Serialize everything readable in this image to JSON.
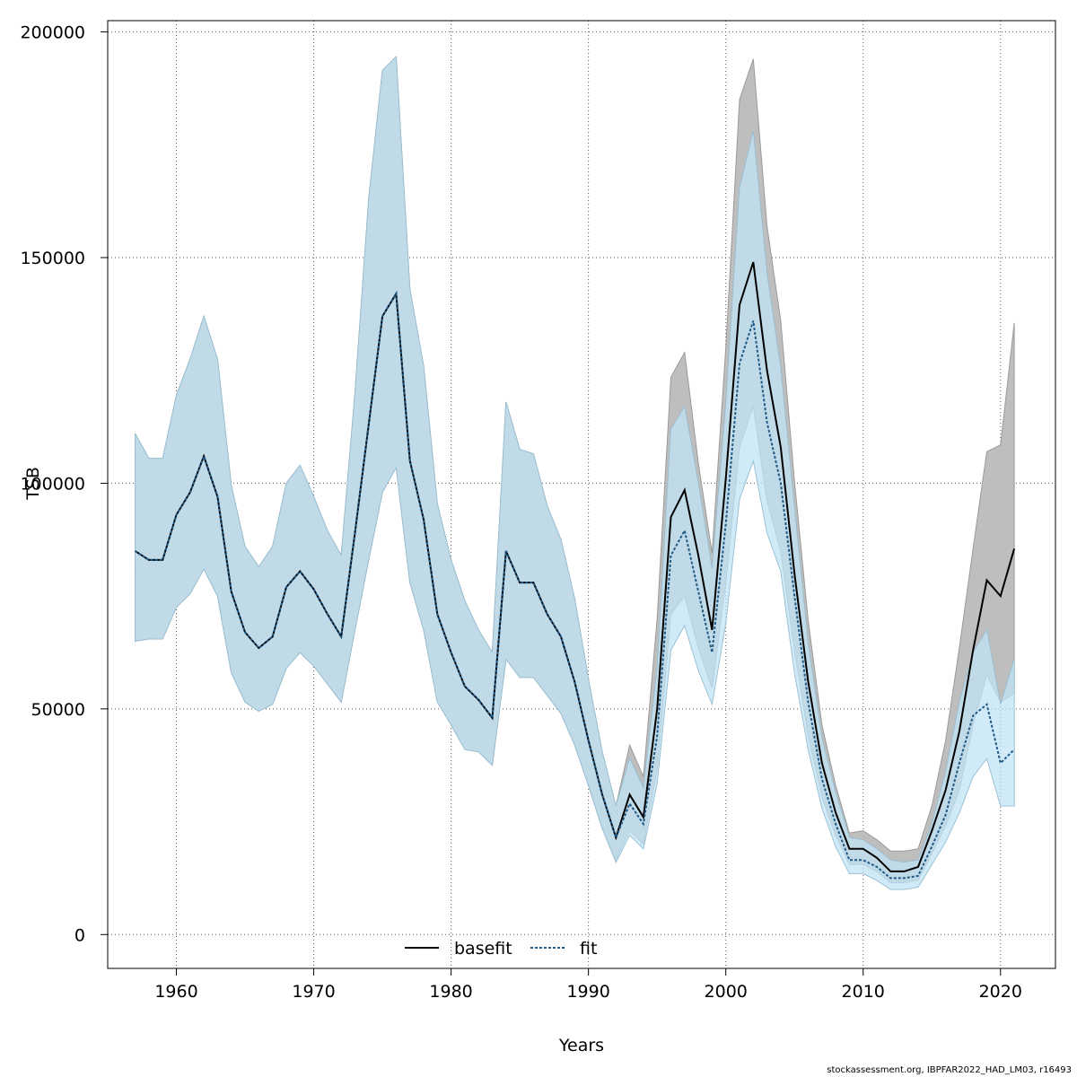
{
  "footer": "stockassessment.org, IBPFAR2022_HAD_LM03, r16493",
  "chart_data": {
    "type": "line",
    "title": "",
    "xlabel": "Years",
    "ylabel": "TSB",
    "xlim": [
      1955,
      2024
    ],
    "ylim": [
      -7500,
      202500
    ],
    "x_ticks": [
      1960,
      1970,
      1980,
      1990,
      2000,
      2010,
      2020
    ],
    "y_ticks": [
      0,
      50000,
      100000,
      150000,
      200000
    ],
    "grid": true,
    "legend": {
      "position": "bottom-center",
      "entries": [
        "basefit",
        "fit"
      ]
    },
    "colors": {
      "base_band": "#bebebe",
      "fit_band": "#c2e3f5",
      "overlap": "#a4c3d4",
      "base_line": "#000000",
      "fit_line": "#1f5a86"
    },
    "x": [
      1957,
      1958,
      1959,
      1960,
      1961,
      1962,
      1963,
      1964,
      1965,
      1966,
      1967,
      1968,
      1969,
      1970,
      1971,
      1972,
      1973,
      1974,
      1975,
      1976,
      1977,
      1978,
      1979,
      1980,
      1981,
      1982,
      1983,
      1984,
      1985,
      1986,
      1987,
      1988,
      1989,
      1990,
      1991,
      1992,
      1993,
      1994,
      1995,
      1996,
      1997,
      1998,
      1999,
      2000,
      2001,
      2002,
      2003,
      2004,
      2005,
      2006,
      2007,
      2008,
      2009,
      2010,
      2011,
      2012,
      2013,
      2014,
      2015,
      2016,
      2017,
      2018,
      2019,
      2020,
      2021
    ],
    "series": [
      {
        "name": "basefit",
        "values": [
          85000,
          83000,
          83000,
          93000,
          98000,
          106000,
          97000,
          76000,
          67000,
          63500,
          66000,
          77000,
          80500,
          76500,
          71000,
          66000,
          89000,
          113000,
          137000,
          142000,
          105000,
          92000,
          71000,
          62500,
          55000,
          52000,
          48000,
          85000,
          78000,
          78000,
          71000,
          66000,
          56000,
          43000,
          31000,
          21500,
          31000,
          26000,
          50000,
          92500,
          98500,
          84000,
          67500,
          101000,
          139500,
          149000,
          125000,
          108000,
          80000,
          56000,
          38000,
          27000,
          19000,
          19000,
          17000,
          14000,
          14000,
          15000,
          23000,
          32000,
          45000,
          63000,
          78500,
          75000,
          85500
        ],
        "upper": [
          111000,
          105500,
          105500,
          119500,
          127500,
          137000,
          127500,
          99500,
          86000,
          81500,
          86000,
          100000,
          104000,
          97000,
          89500,
          84000,
          120000,
          163000,
          191500,
          194500,
          143000,
          126000,
          95500,
          83000,
          74000,
          67500,
          62500,
          118000,
          107500,
          106500,
          95000,
          87500,
          74500,
          56500,
          40500,
          28500,
          42000,
          35000,
          70000,
          123500,
          129000,
          104500,
          84500,
          130000,
          185000,
          194000,
          157000,
          136000,
          100500,
          69500,
          46500,
          33000,
          22500,
          23000,
          21000,
          18500,
          18500,
          19000,
          28500,
          43000,
          63500,
          85500,
          107000,
          108500,
          135500
        ],
        "lower": [
          65000,
          65500,
          65500,
          72500,
          75500,
          81000,
          75000,
          58000,
          51500,
          49500,
          51000,
          59000,
          62500,
          59500,
          55500,
          51500,
          67500,
          83000,
          98000,
          103500,
          78000,
          67500,
          51500,
          46500,
          41000,
          40500,
          37500,
          61000,
          57000,
          57000,
          53000,
          49000,
          42000,
          33000,
          23500,
          16500,
          23000,
          20000,
          36500,
          71000,
          75000,
          63500,
          54500,
          78000,
          108000,
          117000,
          96000,
          85000,
          63000,
          44000,
          30500,
          22000,
          15500,
          15500,
          14000,
          11500,
          11500,
          12000,
          18000,
          24000,
          32000,
          46500,
          57500,
          51500,
          53500
        ]
      },
      {
        "name": "fit",
        "values": [
          85000,
          83000,
          83000,
          93000,
          98000,
          106000,
          97000,
          76000,
          67000,
          63500,
          66000,
          77000,
          80500,
          76500,
          71000,
          66000,
          89000,
          113000,
          137000,
          142000,
          105000,
          92000,
          71000,
          62500,
          55000,
          52000,
          48000,
          85000,
          78000,
          78000,
          71000,
          66000,
          56000,
          43000,
          31000,
          21500,
          29000,
          24500,
          44000,
          84000,
          89500,
          76000,
          62500,
          91000,
          126500,
          136000,
          113500,
          100000,
          75000,
          51500,
          34500,
          24500,
          16500,
          16500,
          15000,
          12500,
          12500,
          13000,
          19500,
          26500,
          38000,
          48500,
          51000,
          38000,
          41000
        ],
        "upper": [
          111000,
          105500,
          105500,
          119500,
          127500,
          137000,
          127500,
          99500,
          86000,
          81500,
          86000,
          100000,
          104000,
          97000,
          89500,
          84000,
          120000,
          163000,
          191500,
          194500,
          143000,
          126000,
          95500,
          83000,
          74000,
          67500,
          62500,
          118000,
          107500,
          106500,
          95000,
          87500,
          74500,
          56500,
          40500,
          28500,
          39000,
          32500,
          59000,
          112000,
          117000,
          100000,
          81000,
          117500,
          165500,
          178000,
          146500,
          125500,
          94500,
          64500,
          43500,
          31500,
          21500,
          21000,
          19000,
          16500,
          16000,
          16500,
          24500,
          36000,
          51500,
          62500,
          67500,
          51000,
          61000
        ],
        "lower": [
          65000,
          65500,
          65500,
          72500,
          75500,
          81000,
          75000,
          58000,
          51500,
          49500,
          51000,
          59000,
          62500,
          59500,
          55500,
          51500,
          67500,
          83000,
          98000,
          103500,
          78000,
          67500,
          51500,
          46500,
          41000,
          40500,
          37500,
          61000,
          57000,
          57000,
          53000,
          49000,
          42000,
          33000,
          23500,
          16000,
          22000,
          19000,
          33500,
          63000,
          68500,
          58500,
          51000,
          69000,
          96500,
          105000,
          89000,
          80500,
          58000,
          41000,
          28000,
          19500,
          13500,
          13500,
          12000,
          10000,
          10000,
          10500,
          15500,
          20500,
          27000,
          35000,
          39000,
          28500,
          28500
        ]
      }
    ]
  }
}
